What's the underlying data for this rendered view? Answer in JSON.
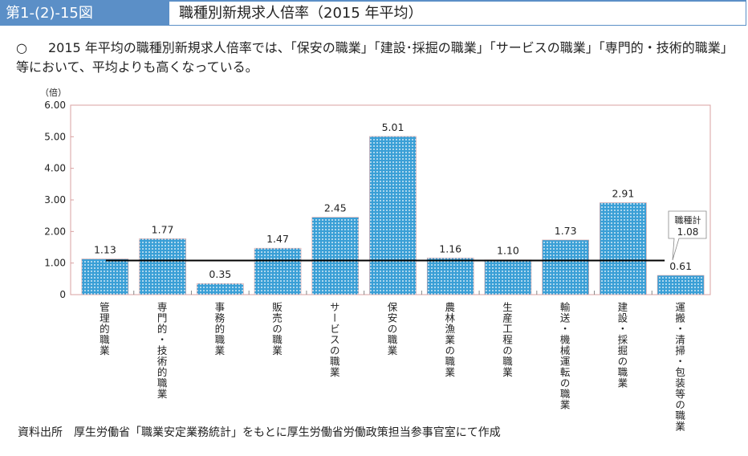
{
  "header": {
    "figure_no": "第1-(2)-15図",
    "title": "職種別新規求人倍率（2015 年平均）"
  },
  "lead": {
    "bullet": "○",
    "text": "2015 年平均の職種別新規求人倍率では、「保安の職業」「建設･採掘の職業」「サービスの職業」「専門的・技術的職業」等において、平均よりも高くなっている。"
  },
  "source": "資料出所　厚生労働省「職業安定業務統計」をもとに厚生労働省労働政策担当参事官室にて作成",
  "colors": {
    "bar": "#3a9fd6",
    "line": "#000000",
    "axis": "#d9a0a0"
  },
  "chart_data": {
    "type": "bar",
    "title": "職種別新規求人倍率（2015 年平均）",
    "ylabel": "（倍）",
    "ylim": [
      0,
      6
    ],
    "yticks": [
      "0",
      "1.00",
      "2.00",
      "3.00",
      "4.00",
      "5.00",
      "6.00"
    ],
    "categories": [
      "管理的職業",
      "専門的・技術的職業",
      "事務的職業",
      "販売の職業",
      "サービスの職業",
      "保安の職業",
      "農林漁業の職業",
      "生産工程の職業",
      "輸送・機械運転の職業",
      "建設・採掘の職業",
      "運搬・清掃・包装等の職業"
    ],
    "values": [
      1.13,
      1.77,
      0.35,
      1.47,
      2.45,
      5.01,
      1.16,
      1.1,
      1.73,
      2.91,
      0.61
    ],
    "labels": [
      "1.13",
      "1.77",
      "0.35",
      "1.47",
      "2.45",
      "5.01",
      "1.16",
      "1.10",
      "1.73",
      "2.91",
      "0.61"
    ],
    "reference": {
      "name": "職種計",
      "value": 1.08,
      "label": "1.08"
    }
  }
}
